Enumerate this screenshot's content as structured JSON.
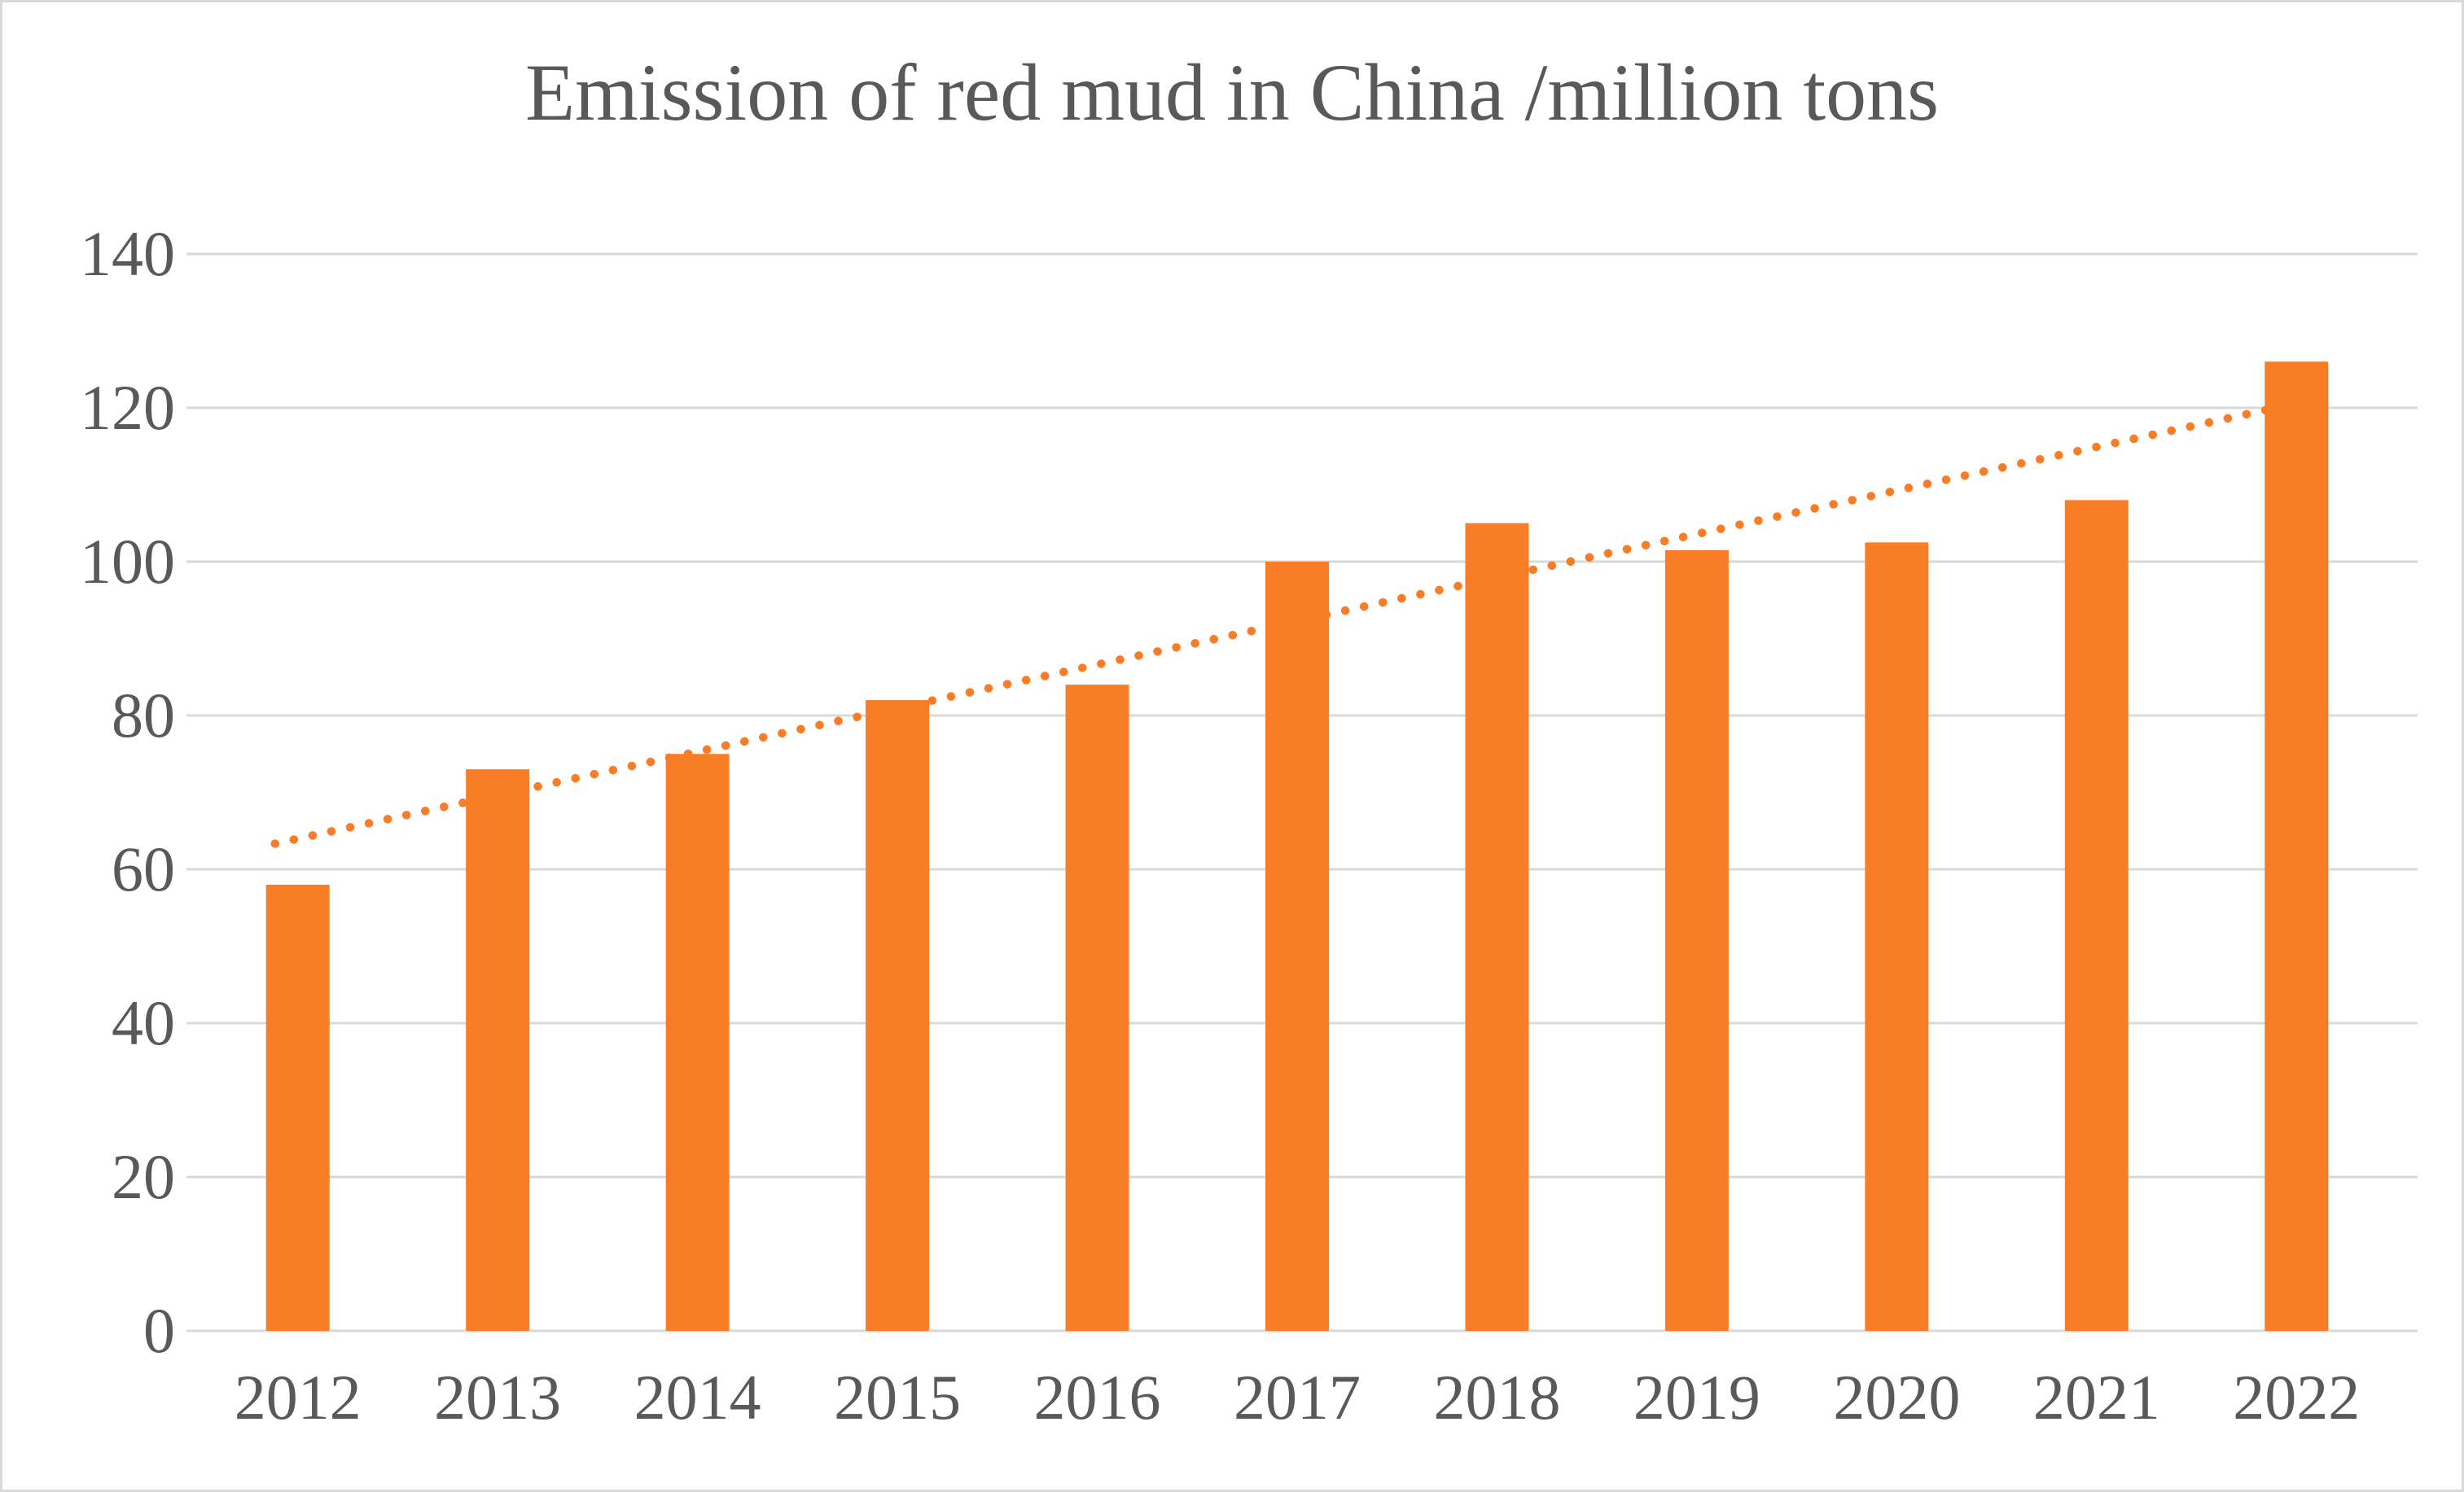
{
  "chart_data": {
    "type": "bar",
    "title": "Emission of red mud in China /million tons",
    "categories": [
      "2012",
      "2013",
      "2014",
      "2015",
      "2016",
      "2017",
      "2018",
      "2019",
      "2020",
      "2021",
      "2022"
    ],
    "values": [
      58,
      73,
      75,
      82,
      84,
      100,
      105,
      101.5,
      102.5,
      108,
      126
    ],
    "xlabel": "",
    "ylabel": "",
    "ylim": [
      0,
      140
    ],
    "ytick_step": 20,
    "yticks": [
      0,
      20,
      40,
      60,
      80,
      100,
      120,
      140
    ],
    "grid": true,
    "legend": "none",
    "trendline": {
      "type": "linear",
      "style": "dotted",
      "value_at_first_year": 64,
      "value_at_last_year": 120.5
    },
    "colors": {
      "bar": "#F97D27",
      "trendline": "#F97D27",
      "gridline": "#D9D9D9",
      "text": "#595959",
      "background": "#FFFFFF",
      "border": "#D9D9D9"
    }
  }
}
